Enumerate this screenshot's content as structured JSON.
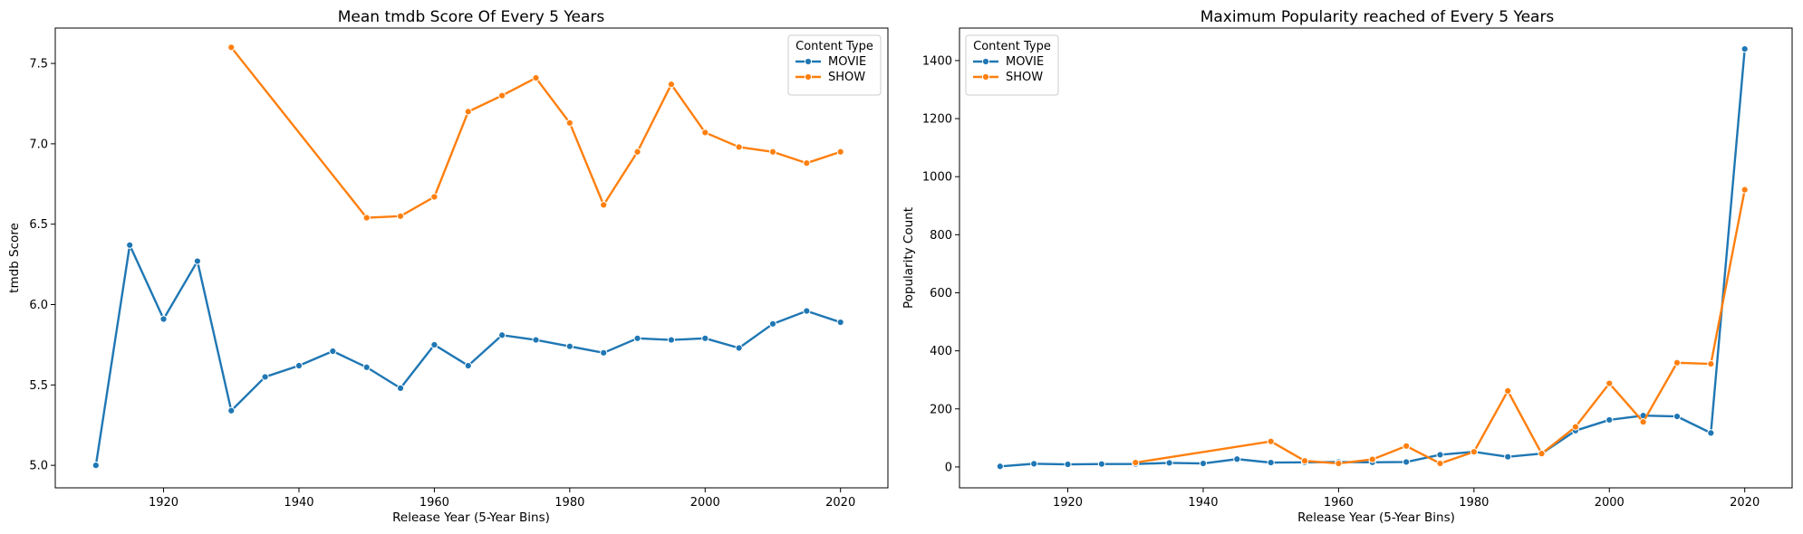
{
  "chart_data": [
    {
      "type": "line",
      "title": "Mean tmdb Score Of Every 5 Years",
      "xlabel": "Release Year (5-Year Bins)",
      "ylabel": "tmdb Score",
      "xlim": [
        1904,
        2027
      ],
      "ylim": [
        4.86,
        7.72
      ],
      "x_ticks": [
        1920,
        1940,
        1960,
        1980,
        2000,
        2020
      ],
      "y_ticks": [
        5.0,
        5.5,
        6.0,
        6.5,
        7.0,
        7.5
      ],
      "legend_title": "Content Type",
      "legend_position": "top-right",
      "grid": false,
      "series": [
        {
          "name": "MOVIE",
          "color": "#1f77b4",
          "x": [
            1910,
            1915,
            1920,
            1925,
            1930,
            1935,
            1940,
            1945,
            1950,
            1955,
            1960,
            1965,
            1970,
            1975,
            1980,
            1985,
            1990,
            1995,
            2000,
            2005,
            2010,
            2015,
            2020
          ],
          "y": [
            5.0,
            6.37,
            5.91,
            6.27,
            5.34,
            5.55,
            5.62,
            5.71,
            5.61,
            5.48,
            5.75,
            5.62,
            5.81,
            5.78,
            5.74,
            5.7,
            5.79,
            5.78,
            5.79,
            5.73,
            5.88,
            5.96,
            5.89
          ]
        },
        {
          "name": "SHOW",
          "color": "#ff7f0e",
          "x": [
            1930,
            1950,
            1955,
            1960,
            1965,
            1970,
            1975,
            1980,
            1985,
            1990,
            1995,
            2000,
            2005,
            2010,
            2015,
            2020
          ],
          "y": [
            7.6,
            6.54,
            6.55,
            6.67,
            7.2,
            7.3,
            7.41,
            7.13,
            6.62,
            6.95,
            7.37,
            7.07,
            6.98,
            6.95,
            6.88,
            6.95
          ]
        }
      ]
    },
    {
      "type": "line",
      "title": "Maximum Popularity reached of Every 5 Years",
      "xlabel": "Release Year (5-Year Bins)",
      "ylabel": "Popularity Count",
      "xlim": [
        1904,
        2027
      ],
      "ylim": [
        -72,
        1512
      ],
      "x_ticks": [
        1920,
        1940,
        1960,
        1980,
        2000,
        2020
      ],
      "y_ticks": [
        0,
        200,
        400,
        600,
        800,
        1000,
        1200,
        1400
      ],
      "legend_title": "Content Type",
      "legend_position": "top-left",
      "grid": false,
      "series": [
        {
          "name": "MOVIE",
          "color": "#1f77b4",
          "x": [
            1910,
            1915,
            1920,
            1925,
            1930,
            1935,
            1940,
            1945,
            1950,
            1955,
            1960,
            1965,
            1970,
            1975,
            1980,
            1985,
            1990,
            1995,
            2000,
            2005,
            2010,
            2015,
            2020
          ],
          "y": [
            2,
            11,
            9,
            10,
            10,
            14,
            12,
            27,
            15,
            16,
            17,
            16,
            17,
            42,
            52,
            35,
            46,
            125,
            162,
            177,
            174,
            117,
            1440
          ]
        },
        {
          "name": "SHOW",
          "color": "#ff7f0e",
          "x": [
            1930,
            1950,
            1955,
            1960,
            1965,
            1970,
            1975,
            1980,
            1985,
            1990,
            1995,
            2000,
            2005,
            2010,
            2015,
            2020
          ],
          "y": [
            15,
            88,
            21,
            12,
            26,
            72,
            12,
            52,
            262,
            46,
            138,
            288,
            155,
            359,
            355,
            955
          ]
        }
      ]
    }
  ]
}
